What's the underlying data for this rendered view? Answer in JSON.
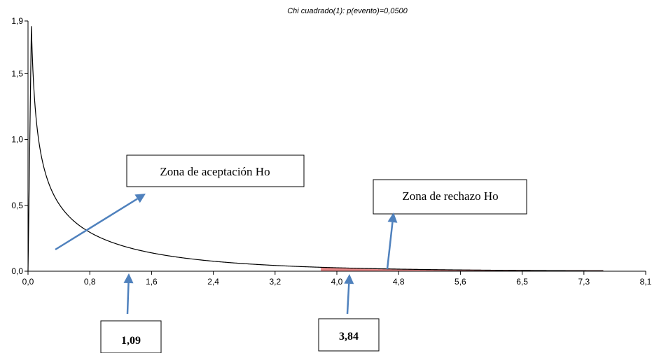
{
  "chart_data": {
    "type": "line",
    "subtitle": "Chi cuadrado(1): p(evento)=0,0500",
    "distribution": "chi-square",
    "degrees_of_freedom": 1,
    "alpha": 0.05,
    "critical_value": 3.84,
    "observed_value": 1.09,
    "x_ticks": [
      "0,0",
      "0,8",
      "1,6",
      "2,4",
      "3,2",
      "4,0",
      "4,8",
      "5,6",
      "6,5",
      "7,3",
      "8,1"
    ],
    "y_ticks": [
      "0,0",
      "0,5",
      "1,0",
      "1,5",
      "1,9"
    ],
    "xlim": [
      0,
      8.1
    ],
    "ylim": [
      0,
      1.9
    ],
    "rejection_region_color": "#e88888",
    "arrow_color": "#4f81bd",
    "annotations": {
      "acceptance": "Zona de aceptación Ho",
      "rejection": "Zona de  rechazo Ho",
      "observed_label": "1,09",
      "critical_label": "3,84"
    }
  }
}
